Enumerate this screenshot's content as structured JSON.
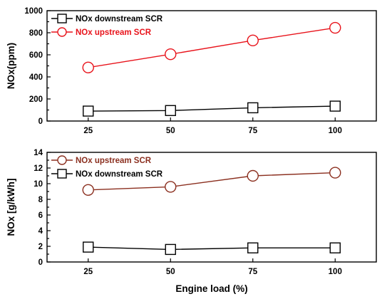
{
  "chart_data": [
    {
      "type": "line",
      "x": [
        25,
        50,
        75,
        100
      ],
      "xticks": [
        "25",
        "50",
        "75",
        "100"
      ],
      "xlabel": "",
      "ylabel": "NOx(ppm)",
      "ylim": [
        0,
        1000
      ],
      "yticks": [
        "0",
        "200",
        "400",
        "600",
        "800",
        "1000"
      ],
      "legend_position": "top-left",
      "series": [
        {
          "name": "NOx downstream SCR",
          "values": [
            90,
            95,
            120,
            135
          ],
          "color": "#000000",
          "marker": "open-square"
        },
        {
          "name": "NOx upstream SCR",
          "values": [
            485,
            605,
            730,
            845
          ],
          "color": "#e8131b",
          "marker": "open-circle"
        }
      ]
    },
    {
      "type": "line",
      "x": [
        25,
        50,
        75,
        100
      ],
      "xticks": [
        "25",
        "50",
        "75",
        "100"
      ],
      "xlabel": "Engine load (%)",
      "ylabel": "NOx [g/kWh]",
      "ylim": [
        0,
        14
      ],
      "yticks": [
        "0",
        "2",
        "4",
        "6",
        "8",
        "10",
        "12",
        "14"
      ],
      "legend_position": "top-left",
      "series": [
        {
          "name": "NOx upstream SCR",
          "values": [
            9.2,
            9.6,
            11.0,
            11.4
          ],
          "color": "#8b2f1f",
          "marker": "open-circle"
        },
        {
          "name": "NOx downstream SCR",
          "values": [
            1.9,
            1.6,
            1.8,
            1.8
          ],
          "color": "#000000",
          "marker": "open-square"
        }
      ]
    }
  ]
}
